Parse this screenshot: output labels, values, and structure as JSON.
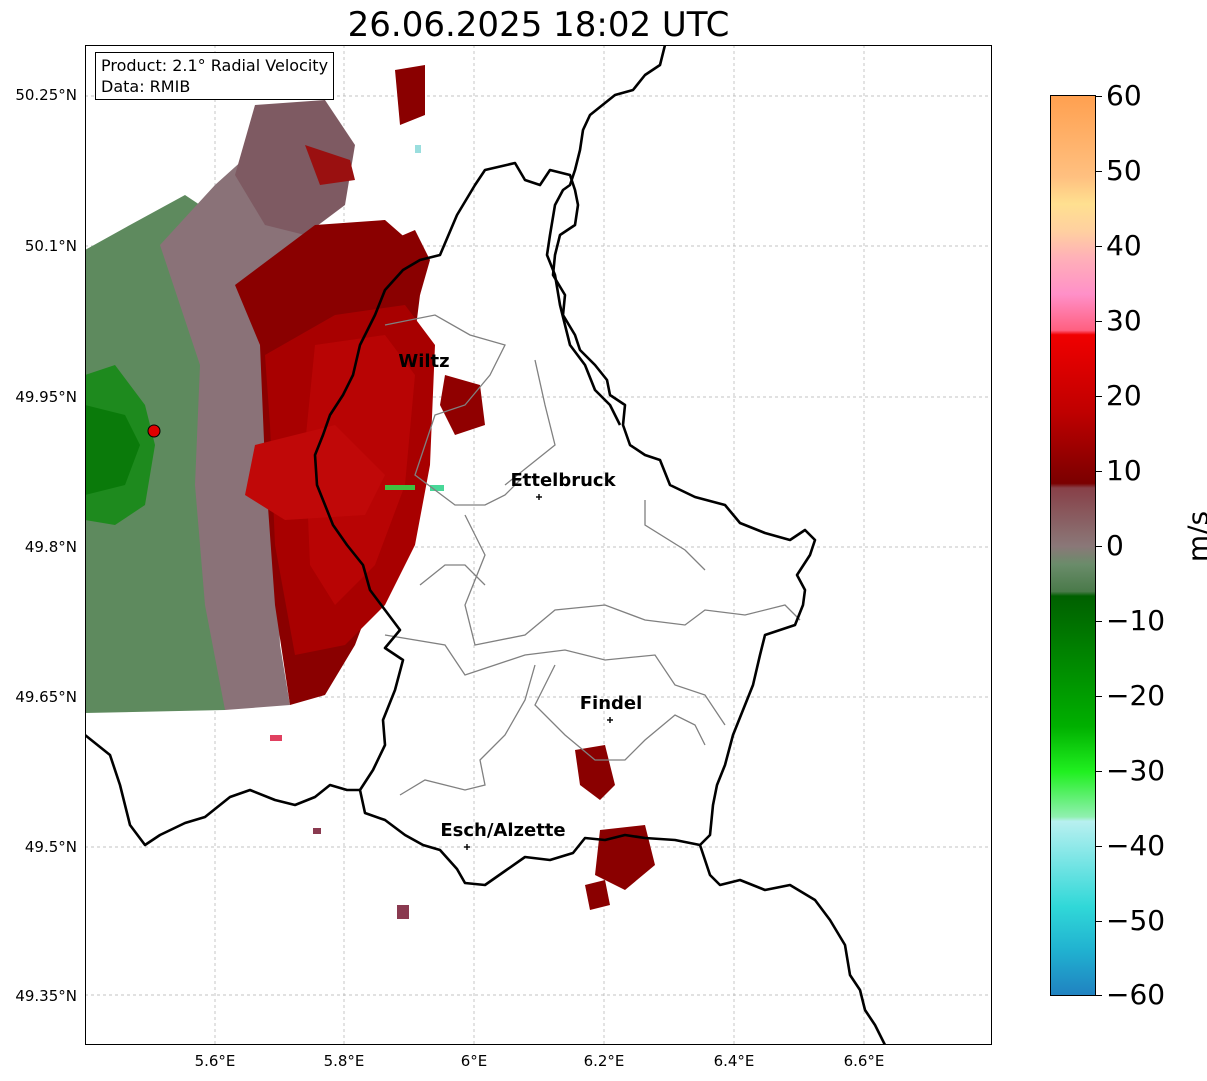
{
  "title": "26.06.2025 18:02 UTC",
  "info": {
    "product": "Product: 2.1° Radial Velocity",
    "data_source": "Data: RMIB"
  },
  "axes": {
    "lat_labels": [
      "50.25°N",
      "50.1°N",
      "49.95°N",
      "49.8°N",
      "49.65°N",
      "49.5°N",
      "49.35°N"
    ],
    "lon_labels": [
      "5.6°E",
      "5.8°E",
      "6°E",
      "6.2°E",
      "6.4°E",
      "6.6°E"
    ]
  },
  "cities": {
    "wiltz": "Wiltz",
    "ettelbruck": "Ettelbruck",
    "findel": "Findel",
    "esch": "Esch/Alzette"
  },
  "colorbar": {
    "unit": "m/s",
    "ticks": [
      "60",
      "50",
      "40",
      "30",
      "20",
      "10",
      "0",
      "−10",
      "−20",
      "−30",
      "−40",
      "−50",
      "−60"
    ],
    "range": [
      -60,
      60
    ]
  },
  "colors": {
    "radar_site": "#e00000",
    "border": "#000000",
    "canton_lines": "#808080"
  }
}
